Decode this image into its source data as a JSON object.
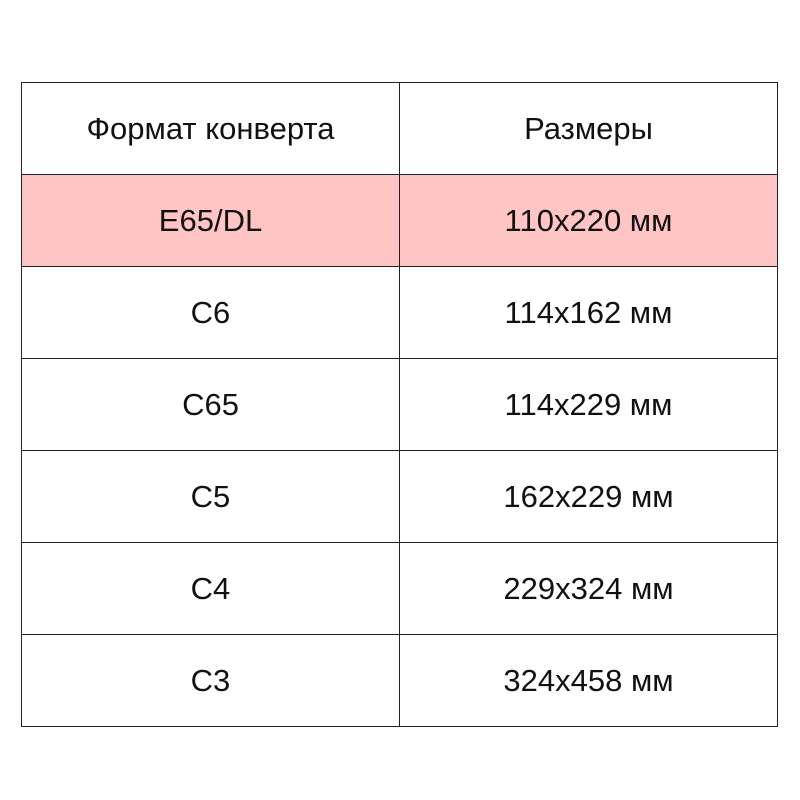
{
  "table": {
    "headers": [
      "Формат конверта",
      "Размеры"
    ],
    "highlight_color": "#ffc4c4",
    "rows": [
      {
        "format": "E65/DL",
        "size": "110x220 мм",
        "highlighted": true
      },
      {
        "format": "C6",
        "size": "114x162 мм",
        "highlighted": false
      },
      {
        "format": "C65",
        "size": "114x229 мм",
        "highlighted": false
      },
      {
        "format": "C5",
        "size": "162x229 мм",
        "highlighted": false
      },
      {
        "format": "C4",
        "size": "229x324 мм",
        "highlighted": false
      },
      {
        "format": "C3",
        "size": "324x458 мм",
        "highlighted": false
      }
    ]
  }
}
